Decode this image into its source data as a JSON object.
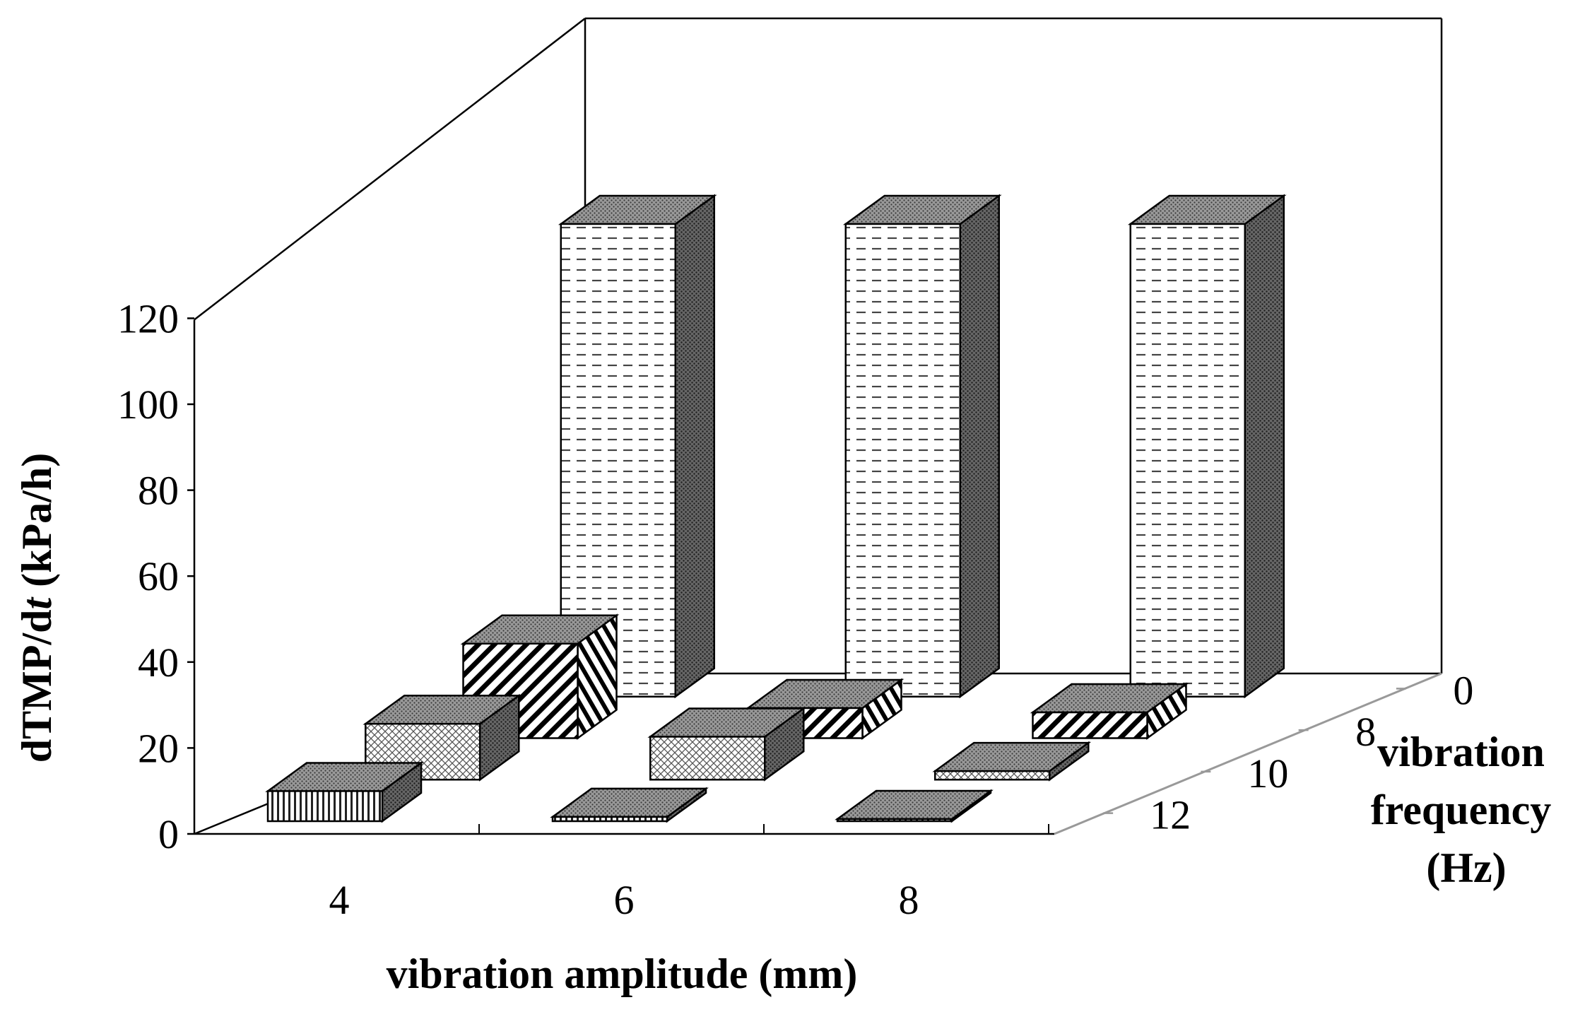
{
  "chart_data": {
    "type": "bar",
    "title": "",
    "x": {
      "label": "vibration amplitude (mm)",
      "categories": [
        "4",
        "6",
        "8"
      ]
    },
    "z": {
      "label_lines": [
        "vibration",
        "frequency",
        "(Hz)"
      ],
      "categories": [
        "0",
        "8",
        "10",
        "12"
      ]
    },
    "y": {
      "label_prefix": "dTMP/d",
      "label_italic": "t",
      "label_suffix": " (kPa/h)",
      "ticks": [
        "0",
        "20",
        "40",
        "60",
        "80",
        "100",
        "120"
      ],
      "ylim": [
        0,
        120
      ]
    },
    "series": [
      {
        "name": "0",
        "pattern": "dashes",
        "values": [
          110,
          110,
          110
        ]
      },
      {
        "name": "8",
        "pattern": "diagonal",
        "values": [
          22,
          7,
          6
        ]
      },
      {
        "name": "10",
        "pattern": "crosshatch",
        "values": [
          13,
          10,
          2
        ]
      },
      {
        "name": "12",
        "pattern": "vertical",
        "values": [
          7,
          1,
          0.5
        ]
      }
    ],
    "grid": false,
    "legend": "none"
  }
}
